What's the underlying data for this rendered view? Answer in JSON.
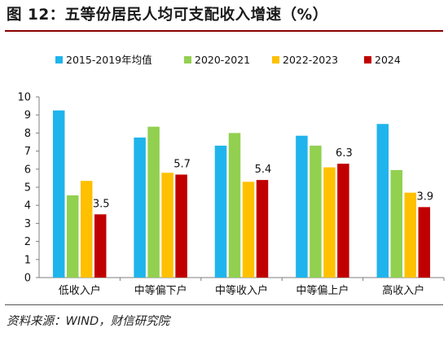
{
  "figure": {
    "title": "图 12：五等份居民人均可支配收入增速（%）",
    "source": "资料来源：WIND，财信研究院"
  },
  "chart_data": {
    "type": "bar",
    "title": "",
    "xlabel": "",
    "ylabel": "",
    "categories": [
      "低收入户",
      "中等偏下户",
      "中等收入户",
      "中等偏上户",
      "高收入户"
    ],
    "series": [
      {
        "name": "2015-2019年均值",
        "color": "#1fb4ec",
        "values": [
          9.25,
          7.75,
          7.3,
          7.85,
          8.5
        ]
      },
      {
        "name": "2020-2021",
        "color": "#92d050",
        "values": [
          4.55,
          8.35,
          8.0,
          7.3,
          5.95
        ]
      },
      {
        "name": "2022-2023",
        "color": "#ffc000",
        "values": [
          5.35,
          5.8,
          5.3,
          6.1,
          4.7
        ]
      },
      {
        "name": "2024",
        "color": "#c00000",
        "values": [
          3.5,
          5.7,
          5.4,
          6.3,
          3.9
        ]
      }
    ],
    "data_labels": [
      {
        "series": 3,
        "category": 0,
        "text": "3.5"
      },
      {
        "series": 3,
        "category": 1,
        "text": "5.7"
      },
      {
        "series": 3,
        "category": 2,
        "text": "5.4"
      },
      {
        "series": 3,
        "category": 3,
        "text": "6.3"
      },
      {
        "series": 3,
        "category": 4,
        "text": "3.9"
      }
    ],
    "ylim": [
      0,
      10
    ],
    "yticks": [
      0,
      1,
      2,
      3,
      4,
      5,
      6,
      7,
      8,
      9,
      10
    ],
    "grid": false,
    "legend": "top"
  }
}
